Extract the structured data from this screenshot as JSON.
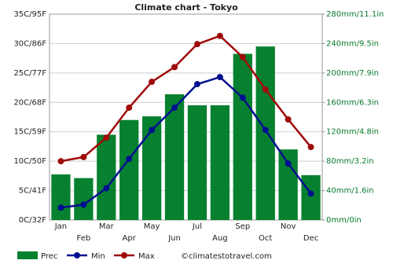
{
  "chart_data": {
    "type": "bar",
    "title": "Climate chart - Tokyo",
    "categories": [
      "Jan",
      "Feb",
      "Mar",
      "Apr",
      "May",
      "Jun",
      "Jul",
      "Aug",
      "Sep",
      "Oct",
      "Nov",
      "Dec"
    ],
    "series": [
      {
        "name": "Prec",
        "type": "bar",
        "axis": "y2",
        "color": "#07812f",
        "values": [
          62,
          57,
          116,
          136,
          141,
          171,
          156,
          156,
          226,
          236,
          96,
          61
        ]
      },
      {
        "name": "Min",
        "type": "line",
        "color": "#00108f",
        "values": [
          2.1,
          2.6,
          5.4,
          10.4,
          15.3,
          19.1,
          23.1,
          24.3,
          20.8,
          15.3,
          9.6,
          4.5
        ]
      },
      {
        "name": "Max",
        "type": "line",
        "color": "#a00a0a",
        "values": [
          10.0,
          10.7,
          14.0,
          19.1,
          23.5,
          26.0,
          29.9,
          31.3,
          27.7,
          22.2,
          17.1,
          12.4
        ]
      }
    ],
    "ylim": [
      0,
      35
    ],
    "yticks": [
      {
        "value": 0,
        "label": "0C/32F"
      },
      {
        "value": 5,
        "label": "5C/41F"
      },
      {
        "value": 10,
        "label": "10C/50F"
      },
      {
        "value": 15,
        "label": "15C/59F"
      },
      {
        "value": 20,
        "label": "20C/68F"
      },
      {
        "value": 25,
        "label": "25C/77F"
      },
      {
        "value": 30,
        "label": "30C/86F"
      },
      {
        "value": 35,
        "label": "35C/95F"
      }
    ],
    "y2lim": [
      0,
      280
    ],
    "y2ticks": [
      {
        "value": 0,
        "label": "0mm/0in"
      },
      {
        "value": 40,
        "label": "40mm/1.6in"
      },
      {
        "value": 80,
        "label": "80mm/3.2in"
      },
      {
        "value": 120,
        "label": "120mm/4.8in"
      },
      {
        "value": 160,
        "label": "160mm/6.3in"
      },
      {
        "value": 200,
        "label": "200mm/7.9in"
      },
      {
        "value": 240,
        "label": "240mm/9.5in"
      },
      {
        "value": 280,
        "label": "280mm/11.1in"
      }
    ],
    "grid": true,
    "credit": "©climatestotravel.com"
  }
}
